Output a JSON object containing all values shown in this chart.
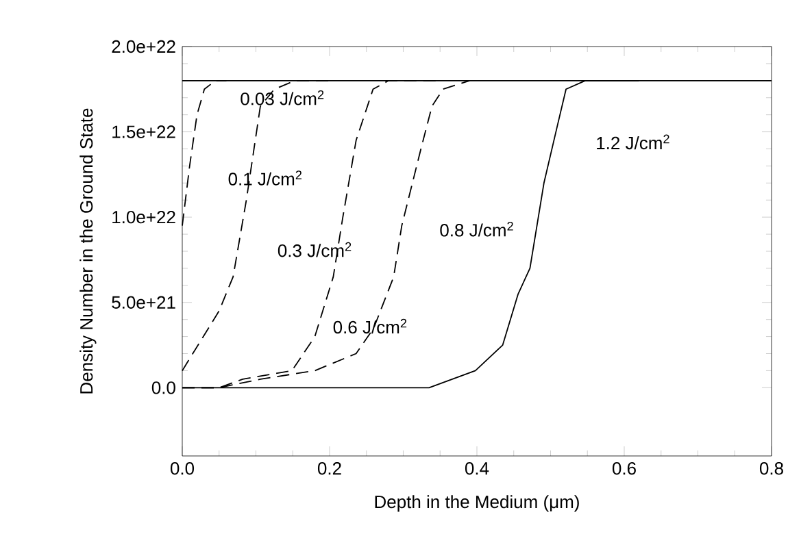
{
  "chart_data": {
    "type": "line",
    "xlabel": "Depth in the Medium (μm)",
    "ylabel": "Density Number in the Ground State",
    "xlim": [
      0,
      0.8
    ],
    "ylim": [
      -4e+21,
      2e+22
    ],
    "xticks": [
      {
        "value": 0,
        "label": "0.0"
      },
      0.2,
      0.4,
      0.6,
      0.8
    ],
    "yticks": [
      {
        "value": 0,
        "label": "0.0"
      },
      {
        "value": 5e+21,
        "label": "5.0e+21"
      },
      {
        "value": 1e+22,
        "label": "1.0e+22"
      },
      {
        "value": 1.5e+22,
        "label": "1.5e+22"
      },
      {
        "value": 2e+22,
        "label": "2.0e+22"
      }
    ],
    "grid": false,
    "marker": "none",
    "ref_lines": [
      {
        "axis": "y",
        "value": 1.8e+22,
        "color": "#000000",
        "line_style": "solid"
      }
    ],
    "series": [
      {
        "color": "#000000",
        "line_style": "dashed",
        "x": [
          0,
          0.01,
          0.02,
          0.03,
          0.045,
          0.06
        ],
        "values": [
          9.5e+21,
          1.3e+22,
          1.6e+22,
          1.75e+22,
          1.8e+22,
          1.8e+22
        ]
      },
      {
        "color": "#000000",
        "line_style": "dashed",
        "x": [
          0,
          0.05,
          0.069,
          0.087,
          0.106,
          0.125,
          0.153,
          0.2
        ],
        "values": [
          1e+21,
          4.5e+21,
          6.5e+21,
          1.1e+22,
          1.65e+22,
          1.75e+22,
          1.8e+22,
          1.8e+22
        ]
      },
      {
        "color": "#000000",
        "line_style": "dashed",
        "x": [
          0,
          0.05,
          0.082,
          0.149,
          0.18,
          0.205,
          0.218,
          0.236,
          0.259,
          0.28,
          0.35
        ],
        "values": [
          0,
          0,
          5e+20,
          1e+21,
          3e+21,
          6.5e+21,
          1e+22,
          1.45e+22,
          1.75e+22,
          1.8e+22,
          1.8e+22
        ]
      },
      {
        "color": "#000000",
        "line_style": "dashed",
        "x": [
          0,
          0.05,
          0.106,
          0.18,
          0.236,
          0.26,
          0.287,
          0.298,
          0.324,
          0.339,
          0.354,
          0.39
        ],
        "values": [
          0,
          0,
          5e+20,
          1e+21,
          2e+21,
          3.5e+21,
          6.5e+21,
          9.5e+21,
          1.4e+22,
          1.65e+22,
          1.75e+22,
          1.8e+22
        ]
      },
      {
        "color": "#000000",
        "line_style": "solid",
        "x": [
          0,
          0.2,
          0.335,
          0.398,
          0.435,
          0.456,
          0.472,
          0.491,
          0.51,
          0.521,
          0.547,
          0.577,
          0.62
        ],
        "values": [
          0,
          0,
          0,
          1e+21,
          2.5e+21,
          5.5e+21,
          7e+21,
          1.2e+22,
          1.55e+22,
          1.75e+22,
          1.8e+22,
          1.8e+22,
          1.8e+22
        ]
      }
    ],
    "annotations": [
      "0.03 J/cm$^{2}$",
      "0.1 J/cm$^{2}$",
      "0.3 J/cm$^{2}$",
      "0.6 J/cm$^{2}$",
      "0.8 J/cm$^{2}$",
      "1.2 J/cm$^{2}$"
    ]
  }
}
